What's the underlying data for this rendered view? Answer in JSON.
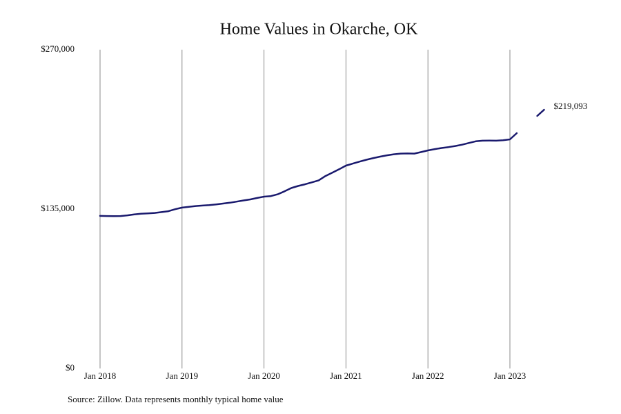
{
  "chart_data": {
    "type": "line",
    "title": "Home Values in Okarche, OK",
    "source": "Source: Zillow. Data represents monthly typical home value",
    "x": [
      "2018-01",
      "2018-02",
      "2018-03",
      "2018-04",
      "2018-05",
      "2018-06",
      "2018-07",
      "2018-08",
      "2018-09",
      "2018-10",
      "2018-11",
      "2018-12",
      "2019-01",
      "2019-02",
      "2019-03",
      "2019-04",
      "2019-05",
      "2019-06",
      "2019-07",
      "2019-08",
      "2019-09",
      "2019-10",
      "2019-11",
      "2019-12",
      "2020-01",
      "2020-02",
      "2020-03",
      "2020-04",
      "2020-05",
      "2020-06",
      "2020-07",
      "2020-08",
      "2020-09",
      "2020-10",
      "2020-11",
      "2020-12",
      "2021-01",
      "2021-02",
      "2021-03",
      "2021-04",
      "2021-05",
      "2021-06",
      "2021-07",
      "2021-08",
      "2021-09",
      "2021-10",
      "2021-11",
      "2021-12",
      "2022-01",
      "2022-02",
      "2022-03",
      "2022-04",
      "2022-05",
      "2022-06",
      "2022-07",
      "2022-08",
      "2022-09",
      "2022-10",
      "2022-11",
      "2022-12",
      "2023-01",
      "2023-02",
      "2023-03",
      "2023-04",
      "2023-05",
      "2023-06"
    ],
    "series": [
      {
        "name": "Home value",
        "color": "#1a1a6e",
        "values": [
          129200,
          129100,
          129000,
          129100,
          129700,
          130500,
          131000,
          131300,
          131700,
          132400,
          133200,
          134900,
          136200,
          136900,
          137600,
          138000,
          138400,
          139000,
          139700,
          140400,
          141300,
          142300,
          143200,
          144400,
          145500,
          146000,
          147500,
          150000,
          152800,
          154600,
          156000,
          157600,
          159300,
          163000,
          165800,
          168700,
          171800,
          173500,
          175200,
          176800,
          178200,
          179400,
          180500,
          181400,
          182000,
          182100,
          182000,
          183300,
          184700,
          185800,
          186700,
          187500,
          188400,
          189500,
          191000,
          192400,
          192900,
          193000,
          192900,
          193300,
          194000,
          199300,
          null,
          null,
          213900,
          219093
        ],
        "value_labels": [
          null,
          null,
          null,
          null,
          null,
          null,
          null,
          null,
          null,
          null,
          null,
          null,
          null,
          null,
          null,
          null,
          null,
          null,
          null,
          null,
          null,
          null,
          null,
          null,
          null,
          null,
          null,
          null,
          null,
          null,
          null,
          null,
          null,
          null,
          null,
          null,
          null,
          null,
          null,
          null,
          null,
          null,
          null,
          null,
          null,
          null,
          null,
          null,
          null,
          null,
          null,
          null,
          null,
          null,
          null,
          null,
          null,
          null,
          null,
          null,
          null,
          null,
          null,
          null,
          null,
          "$219,093"
        ]
      }
    ],
    "xlim": [
      "2018-01",
      "2023-06"
    ],
    "xticks": [
      {
        "value": "2018-01",
        "label": "Jan 2018"
      },
      {
        "value": "2019-01",
        "label": "Jan 2019"
      },
      {
        "value": "2020-01",
        "label": "Jan 2020"
      },
      {
        "value": "2021-01",
        "label": "Jan 2021"
      },
      {
        "value": "2022-01",
        "label": "Jan 2022"
      },
      {
        "value": "2023-01",
        "label": "Jan 2023"
      }
    ],
    "ylim": [
      0,
      270000
    ],
    "yticks": [
      {
        "value": 0,
        "label": "$0"
      },
      {
        "value": 135000,
        "label": "$135,000"
      },
      {
        "value": 270000,
        "label": "$270,000"
      }
    ],
    "grid": "x"
  }
}
